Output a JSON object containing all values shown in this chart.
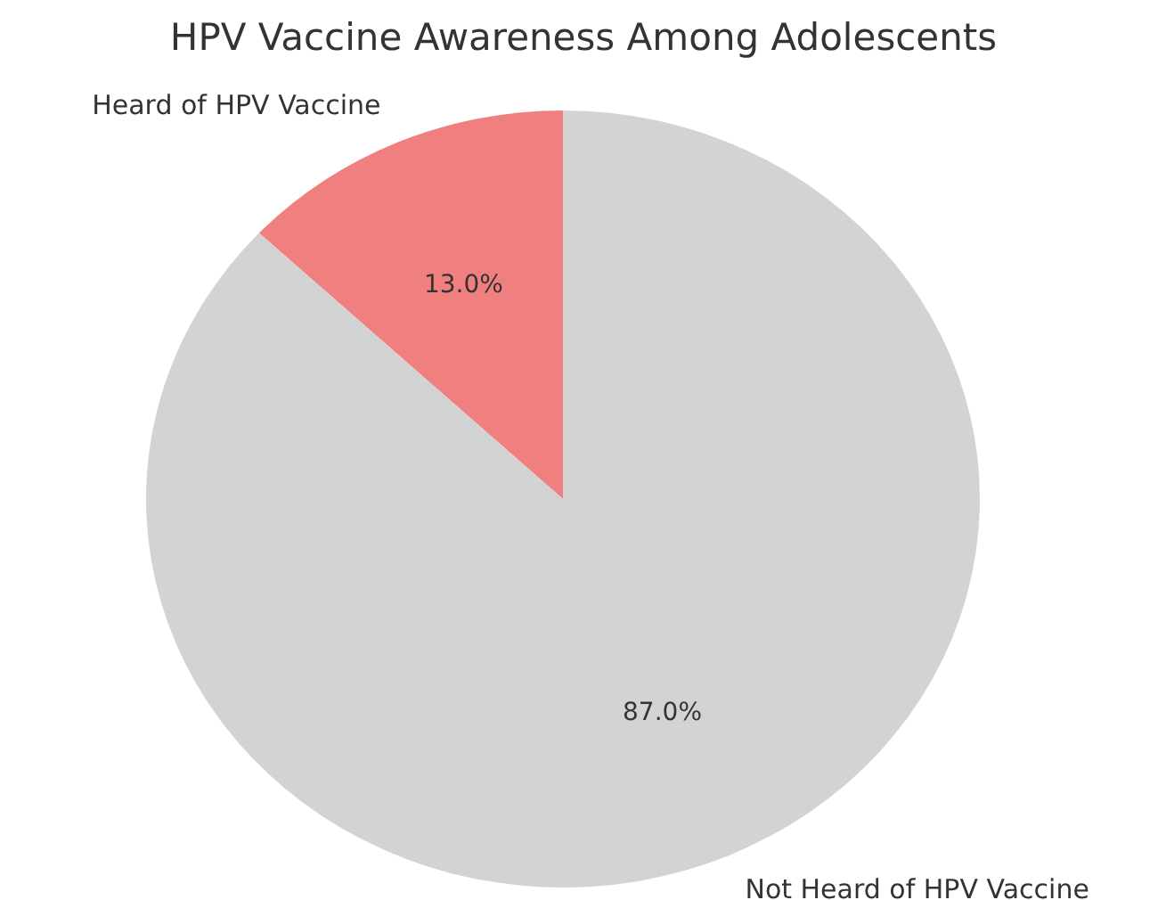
{
  "chart_data": {
    "type": "pie",
    "title": "HPV Vaccine Awareness Among Adolescents",
    "categories": [
      "Heard of HPV Vaccine",
      "Not Heard of HPV Vaccine"
    ],
    "values": [
      13,
      87
    ],
    "colors": [
      "#f08080",
      "#d3d3d3"
    ],
    "value_labels": [
      "13.0%",
      "87.0%"
    ]
  }
}
